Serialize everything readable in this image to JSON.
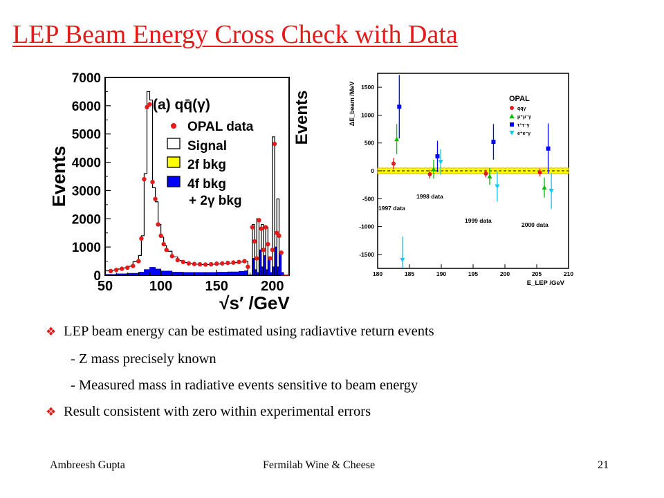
{
  "slide": {
    "title": "LEP Beam Energy Cross Check with Data",
    "bullets": [
      {
        "text": "LEP beam energy can be estimated using radiavtive return events",
        "marker": true,
        "indent": 0
      },
      {
        "text": "- Z mass precisely known",
        "marker": false,
        "indent": 1
      },
      {
        "text": "- Measured mass in radiative events sensitive to beam energy",
        "marker": false,
        "indent": 1
      },
      {
        "text": "Result consistent with zero within experimental errors",
        "marker": true,
        "indent": 0
      }
    ],
    "footer": {
      "author": "Ambreesh Gupta",
      "event": "Fermilab Wine & Cheese",
      "page": "21"
    },
    "marker_icon": "diamond-bullet-icon",
    "accent_color": "#e31b1b"
  },
  "chart_data": [
    {
      "type": "histogram",
      "ylabel": "Events",
      "ylabel_cut": "Events",
      "xlabel": "√s′ /GeV",
      "xlim": [
        50,
        215
      ],
      "ylim": [
        0,
        7000
      ],
      "xticks": [
        50,
        100,
        150,
        200
      ],
      "yticks": [
        0,
        1000,
        2000,
        3000,
        4000,
        5000,
        6000,
        7000
      ],
      "panel_label": "(a) qq̄(γ)",
      "legend": [
        {
          "label": "OPAL data",
          "kind": "marker",
          "color": "#e31b1b"
        },
        {
          "label": "Signal",
          "kind": "box",
          "color": "#ffffff"
        },
        {
          "label": "2f bkg",
          "kind": "box",
          "color": "#ffff00"
        },
        {
          "label": "4f bkg",
          "kind": "box",
          "color": "#0000ff"
        },
        {
          "label": "+ 2γ bkg",
          "kind": "text"
        }
      ],
      "data_points": {
        "x": [
          55,
          60,
          65,
          70,
          75,
          80,
          82.5,
          85,
          87.5,
          90,
          92.5,
          95,
          97.5,
          100,
          102.5,
          105,
          110,
          115,
          120,
          125,
          130,
          135,
          140,
          145,
          150,
          155,
          160,
          165,
          170,
          175,
          178,
          182,
          184,
          186,
          188,
          190,
          192,
          194,
          196,
          198,
          200,
          202,
          204,
          206,
          208
        ],
        "y": [
          150,
          190,
          230,
          270,
          330,
          500,
          1300,
          3400,
          5950,
          6050,
          3300,
          2700,
          1800,
          1400,
          1100,
          900,
          680,
          540,
          470,
          420,
          400,
          390,
          380,
          390,
          410,
          420,
          440,
          450,
          470,
          500,
          300,
          1700,
          1200,
          600,
          1950,
          1650,
          900,
          1700,
          1100,
          600,
          900,
          4650,
          1500,
          1400,
          800
        ]
      },
      "signal": {
        "x": [
          50,
          55,
          60,
          65,
          70,
          75,
          80,
          82.5,
          85,
          87.5,
          90,
          92.5,
          95,
          97.5,
          100,
          102.5,
          105,
          110,
          115,
          120,
          125,
          130,
          135,
          140,
          145,
          150,
          155,
          160,
          165,
          170,
          175,
          178,
          182,
          184,
          186,
          188,
          190,
          192,
          194,
          196,
          198,
          200,
          202,
          204,
          206,
          208,
          210
        ],
        "y": [
          160,
          180,
          220,
          260,
          320,
          480,
          700,
          1400,
          3600,
          6500,
          6200,
          3100,
          2600,
          1800,
          1350,
          1050,
          850,
          650,
          520,
          450,
          410,
          390,
          380,
          380,
          390,
          400,
          420,
          430,
          450,
          470,
          500,
          0,
          1800,
          0,
          2000,
          0,
          1800,
          0,
          1700,
          0,
          0,
          4900,
          0,
          2700,
          0,
          0,
          0
        ]
      },
      "four_f": {
        "x": [
          50,
          60,
          70,
          80,
          85,
          90,
          95,
          100,
          110,
          120,
          130,
          140,
          150,
          160,
          170,
          175,
          178,
          182,
          184,
          186,
          188,
          190,
          192,
          194,
          196,
          198,
          200,
          202,
          204,
          206,
          208,
          210
        ],
        "y": [
          30,
          50,
          70,
          110,
          200,
          280,
          220,
          150,
          110,
          100,
          100,
          100,
          110,
          120,
          140,
          160,
          0,
          600,
          200,
          100,
          900,
          300,
          700,
          200,
          600,
          100,
          300,
          1000,
          300,
          800,
          100,
          0
        ]
      }
    },
    {
      "type": "scatter",
      "ylabel": "ΔE_beam /MeV",
      "xlabel": "E_LEP /GeV",
      "xlim": [
        180,
        210
      ],
      "ylim": [
        -1750,
        1750
      ],
      "xticks": [
        180,
        185,
        190,
        195,
        200,
        205,
        210
      ],
      "yticks": [
        -1500,
        -1000,
        -500,
        0,
        500,
        1000,
        1500
      ],
      "legend_title": "OPAL",
      "band": [
        -50,
        50
      ],
      "annotations": [
        "1997 data",
        "1998 data",
        "1999 data",
        "2000 data"
      ],
      "series": [
        {
          "name": "qqγ",
          "color": "#e31b1b",
          "marker": "circle",
          "x": [
            182.5,
            188.2,
            197.0,
            205.5
          ],
          "y": [
            130,
            -60,
            -50,
            -30
          ],
          "err": [
            100,
            80,
            70,
            70
          ]
        },
        {
          "name": "μ⁺μ⁻γ",
          "color": "#00c000",
          "marker": "triangle-up",
          "x": [
            183.0,
            188.8,
            197.6,
            206.2
          ],
          "y": [
            570,
            30,
            -100,
            -300
          ],
          "err": [
            270,
            170,
            150,
            180
          ]
        },
        {
          "name": "τ⁺τ⁻γ",
          "color": "#0000ff",
          "marker": "square",
          "x": [
            183.4,
            189.4,
            198.2,
            206.8
          ],
          "y": [
            1150,
            260,
            520,
            400
          ],
          "err": [
            570,
            280,
            320,
            450
          ]
        },
        {
          "name": "e⁺e⁻γ",
          "color": "#00ccff",
          "marker": "triangle-down",
          "x": [
            183.9,
            189.9,
            198.8,
            207.3
          ],
          "y": [
            -1600,
            160,
            -280,
            -360
          ],
          "err": [
            420,
            230,
            270,
            320
          ]
        }
      ]
    }
  ]
}
